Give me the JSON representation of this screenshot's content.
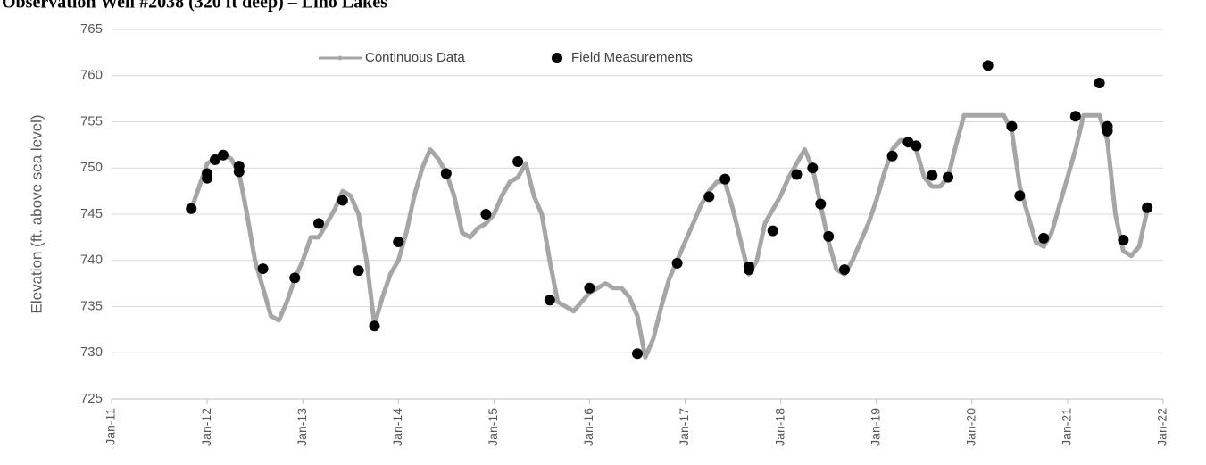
{
  "chart_data": {
    "type": "line-scatter",
    "title": "Observation Well #2038 (320 ft deep) – Lino Lakes",
    "y_label": "Elevation (ft. above sea level)",
    "xlim": [
      "2011-01",
      "2022-01"
    ],
    "xticks": [
      {
        "value": "2011-01",
        "label": "Jan-11"
      },
      {
        "value": "2012-01",
        "label": "Jan-12"
      },
      {
        "value": "2013-01",
        "label": "Jan-13"
      },
      {
        "value": "2014-01",
        "label": "Jan-14"
      },
      {
        "value": "2015-01",
        "label": "Jan-15"
      },
      {
        "value": "2016-01",
        "label": "Jan-16"
      },
      {
        "value": "2017-01",
        "label": "Jan-17"
      },
      {
        "value": "2018-01",
        "label": "Jan-18"
      },
      {
        "value": "2019-01",
        "label": "Jan-19"
      },
      {
        "value": "2020-01",
        "label": "Jan-20"
      },
      {
        "value": "2021-01",
        "label": "Jan-21"
      },
      {
        "value": "2022-01",
        "label": "Jan-22"
      }
    ],
    "ylim": [
      725,
      765
    ],
    "yticks": [
      725,
      730,
      735,
      740,
      745,
      750,
      755,
      760,
      765
    ],
    "grid": true,
    "legend": "top",
    "series": [
      {
        "name": "Continuous Data",
        "kind": "line",
        "color": "#a6a6a6",
        "x": [
          "2011-11",
          "2011-12",
          "2012-01",
          "2012-02",
          "2012-03",
          "2012-04",
          "2012-05",
          "2012-06",
          "2012-07",
          "2012-08",
          "2012-09",
          "2012-10",
          "2012-11",
          "2012-12",
          "2013-01",
          "2013-02",
          "2013-03",
          "2013-04",
          "2013-05",
          "2013-06",
          "2013-07",
          "2013-08",
          "2013-09",
          "2013-10",
          "2013-11",
          "2013-12",
          "2014-01",
          "2014-02",
          "2014-03",
          "2014-04",
          "2014-05",
          "2014-06",
          "2014-07",
          "2014-08",
          "2014-09",
          "2014-10",
          "2014-11",
          "2014-12",
          "2015-01",
          "2015-02",
          "2015-03",
          "2015-04",
          "2015-05",
          "2015-06",
          "2015-07",
          "2015-08",
          "2015-09",
          "2015-10",
          "2015-11",
          "2015-12",
          "2016-01",
          "2016-02",
          "2016-03",
          "2016-04",
          "2016-05",
          "2016-06",
          "2016-07",
          "2016-08",
          "2016-09",
          "2016-10",
          "2016-11",
          "2016-12",
          "2017-01",
          "2017-02",
          "2017-03",
          "2017-04",
          "2017-05",
          "2017-06",
          "2017-07",
          "2017-08",
          "2017-09",
          "2017-10",
          "2017-11",
          "2017-12",
          "2018-01",
          "2018-02",
          "2018-03",
          "2018-04",
          "2018-05",
          "2018-06",
          "2018-07",
          "2018-08",
          "2018-09",
          "2018-10",
          "2018-11",
          "2018-12",
          "2019-01",
          "2019-02",
          "2019-03",
          "2019-04",
          "2019-05",
          "2019-06",
          "2019-07",
          "2019-08",
          "2019-09",
          "2019-10",
          "2019-11",
          "2019-12",
          "2020-01",
          "2020-02",
          "2020-03",
          "2020-04",
          "2020-05",
          "2020-06",
          "2020-07",
          "2020-08",
          "2020-09",
          "2020-10",
          "2020-11",
          "2020-12",
          "2021-01",
          "2021-02",
          "2021-03",
          "2021-04",
          "2021-05",
          "2021-06",
          "2021-07",
          "2021-08",
          "2021-09",
          "2021-10",
          "2021-11"
        ],
        "values": [
          745.5,
          748,
          750.5,
          751,
          751.5,
          751,
          749.5,
          745,
          740,
          737,
          734,
          733.5,
          735.5,
          738,
          740,
          742.5,
          742.5,
          744,
          745.5,
          747.5,
          747,
          745,
          740,
          733,
          736,
          738.5,
          740,
          743,
          747,
          750,
          752,
          751,
          749.5,
          747,
          743,
          742.5,
          743.5,
          744,
          745,
          747,
          748.5,
          749,
          750.5,
          747,
          745,
          740,
          735.5,
          735,
          734.5,
          735.5,
          736.5,
          737,
          737.5,
          737,
          737,
          736,
          734,
          729.5,
          731.5,
          735,
          738,
          740,
          742,
          744,
          746,
          747.5,
          748.5,
          748.5,
          745.5,
          742,
          738.5,
          740,
          744,
          745.5,
          747,
          749,
          750.5,
          752,
          750,
          746,
          742,
          739,
          738.5,
          740,
          742,
          744,
          746.5,
          749.5,
          752,
          753,
          753,
          752,
          749,
          748,
          748,
          749,
          752.5,
          755.7,
          755.7,
          755.7,
          755.7,
          755.7,
          755.7,
          754,
          748,
          745,
          742,
          741.5,
          743,
          746,
          749,
          752,
          755.7,
          755.7,
          755.7,
          753,
          745,
          741,
          740.5,
          741.5,
          745.5
        ]
      },
      {
        "name": "Field Measurements",
        "kind": "scatter",
        "color": "#000000",
        "x": [
          "2011-11",
          "2012-01",
          "2012-01",
          "2012-02",
          "2012-03",
          "2012-05",
          "2012-05",
          "2012-08",
          "2012-12",
          "2013-03",
          "2013-06",
          "2013-08",
          "2013-10",
          "2014-01",
          "2014-07",
          "2014-12",
          "2015-04",
          "2015-08",
          "2016-01",
          "2016-07",
          "2016-12",
          "2017-04",
          "2017-06",
          "2017-09",
          "2017-09",
          "2017-12",
          "2018-03",
          "2018-05",
          "2018-06",
          "2018-07",
          "2018-09",
          "2019-03",
          "2019-05",
          "2019-06",
          "2019-08",
          "2019-10",
          "2020-03",
          "2020-06",
          "2020-07",
          "2020-10",
          "2021-02",
          "2021-05",
          "2021-06",
          "2021-06",
          "2021-08",
          "2021-11"
        ],
        "values": [
          745.6,
          749.4,
          748.9,
          750.9,
          751.4,
          750.2,
          749.6,
          739.1,
          738.1,
          744,
          746.5,
          738.9,
          732.9,
          742,
          749.4,
          745,
          750.7,
          735.7,
          737,
          729.9,
          739.7,
          746.9,
          748.8,
          739.3,
          739,
          743.2,
          749.3,
          750,
          746.1,
          742.6,
          739,
          751.3,
          752.8,
          752.4,
          749.2,
          749,
          761.1,
          754.5,
          747,
          742.4,
          755.6,
          759.2,
          754.5,
          754,
          742.2,
          745.7
        ]
      }
    ]
  }
}
